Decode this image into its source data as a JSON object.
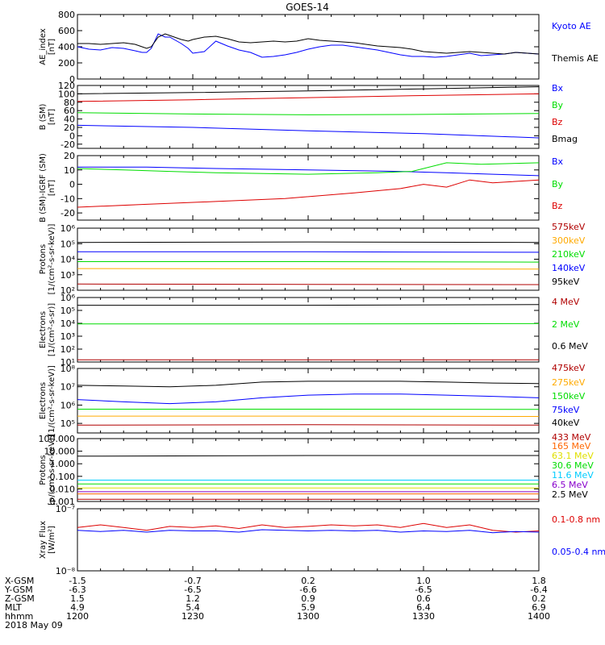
{
  "title": "GOES-14",
  "chart_data": [
    {
      "type": "line",
      "ylabel": "AE_index\n[nT]",
      "yscale": "linear",
      "ylim": [
        0,
        800
      ],
      "yticks": [
        0,
        200,
        400,
        600,
        800
      ],
      "ytick_labels": [
        "0",
        "200",
        "400",
        "600",
        "800"
      ],
      "xlim": [
        1200,
        1400
      ],
      "series": [
        {
          "name": "Kyoto AE",
          "color": "#0000ff",
          "x": [
            1200,
            1205,
            1210,
            1215,
            1220,
            1225,
            1228,
            1230,
            1232,
            1235,
            1238,
            1240,
            1245,
            1248,
            1250,
            1255,
            1260,
            1265,
            1270,
            1275,
            1280,
            1285,
            1290,
            1295,
            1300,
            1305,
            1310,
            1315,
            1320,
            1325,
            1330,
            1335,
            1340,
            1345,
            1350,
            1355,
            1360,
            1365,
            1370,
            1375,
            1380,
            1385,
            1390,
            1395,
            1400
          ],
          "values": [
            400,
            370,
            360,
            390,
            380,
            350,
            330,
            330,
            380,
            560,
            520,
            520,
            440,
            380,
            320,
            340,
            470,
            410,
            360,
            330,
            270,
            280,
            300,
            330,
            370,
            400,
            420,
            420,
            400,
            380,
            360,
            330,
            300,
            280,
            280,
            270,
            280,
            300,
            320,
            290,
            300,
            310,
            330,
            320,
            310
          ]
        },
        {
          "name": "Themis AE",
          "color": "#000000",
          "x": [
            1200,
            1205,
            1210,
            1215,
            1220,
            1225,
            1228,
            1230,
            1232,
            1235,
            1238,
            1240,
            1245,
            1248,
            1250,
            1255,
            1260,
            1265,
            1270,
            1275,
            1280,
            1285,
            1290,
            1295,
            1300,
            1305,
            1310,
            1315,
            1320,
            1325,
            1330,
            1335,
            1340,
            1345,
            1350,
            1355,
            1360,
            1365,
            1370,
            1375,
            1380,
            1385,
            1390,
            1395,
            1400
          ],
          "values": [
            440,
            440,
            430,
            440,
            450,
            430,
            400,
            380,
            400,
            520,
            560,
            540,
            490,
            470,
            490,
            520,
            530,
            500,
            460,
            450,
            460,
            470,
            460,
            470,
            500,
            480,
            470,
            460,
            450,
            430,
            410,
            400,
            390,
            370,
            340,
            330,
            320,
            330,
            340,
            330,
            320,
            310,
            330,
            320,
            310
          ]
        }
      ]
    },
    {
      "type": "line",
      "ylabel": "B (SM)\n[nT]",
      "yscale": "linear",
      "ylim": [
        -30,
        120
      ],
      "yticks": [
        -20,
        0,
        20,
        40,
        60,
        80,
        100,
        120
      ],
      "ytick_labels": [
        "-20",
        "0",
        "20",
        "40",
        "60",
        "80",
        "100",
        "120"
      ],
      "xlim": [
        1200,
        1400
      ],
      "series": [
        {
          "name": "Bx",
          "color": "#0000ff",
          "x": [
            1200,
            1250,
            1300,
            1350,
            1400
          ],
          "values": [
            25,
            20,
            12,
            5,
            -5
          ]
        },
        {
          "name": "By",
          "color": "#00dd00",
          "x": [
            1200,
            1250,
            1300,
            1350,
            1400
          ],
          "values": [
            55,
            52,
            50,
            51,
            53
          ]
        },
        {
          "name": "Bz",
          "color": "#dd0000",
          "x": [
            1200,
            1250,
            1300,
            1350,
            1400
          ],
          "values": [
            82,
            86,
            91,
            96,
            100
          ]
        },
        {
          "name": "Bmag",
          "color": "#000000",
          "x": [
            1200,
            1250,
            1300,
            1350,
            1400
          ],
          "values": [
            100,
            103,
            107,
            112,
            117
          ]
        }
      ]
    },
    {
      "type": "line",
      "ylabel": "B (SM)-IGRF (SM)\n[nT]",
      "yscale": "linear",
      "ylim": [
        -25,
        20
      ],
      "yticks": [
        -20,
        -10,
        0,
        10,
        20
      ],
      "ytick_labels": [
        "-20",
        "-10",
        "0",
        "10",
        "20"
      ],
      "xlim": [
        1200,
        1400
      ],
      "series": [
        {
          "name": "Bx",
          "color": "#0000ff",
          "x": [
            1200,
            1230,
            1260,
            1300,
            1340,
            1360,
            1380,
            1400
          ],
          "values": [
            12,
            12,
            11,
            10,
            9,
            8,
            7,
            6
          ]
        },
        {
          "name": "By",
          "color": "#00dd00",
          "x": [
            1200,
            1220,
            1240,
            1260,
            1300,
            1330,
            1345,
            1360,
            1375,
            1400
          ],
          "values": [
            11,
            10,
            9,
            8,
            7,
            8,
            9,
            15,
            14,
            15
          ]
        },
        {
          "name": "Bz",
          "color": "#dd0000",
          "x": [
            1200,
            1230,
            1260,
            1290,
            1320,
            1340,
            1350,
            1360,
            1370,
            1380,
            1400
          ],
          "values": [
            -16,
            -14,
            -12,
            -10,
            -6,
            -3,
            0,
            -2,
            3,
            1,
            3
          ]
        }
      ]
    },
    {
      "type": "line",
      "ylabel": "Protons\n[1/(cm²-s-sr-keV)]",
      "yscale": "log",
      "ylim": [
        100,
        1000000
      ],
      "yticks": [
        100,
        1000,
        10000,
        100000,
        1000000
      ],
      "ytick_labels": [
        "10²",
        "10³",
        "10⁴",
        "10⁵",
        "10⁶"
      ],
      "xlim": [
        1200,
        1400
      ],
      "series": [
        {
          "name": "575keV",
          "color": "#b00000",
          "x": [
            1200,
            1300,
            1400
          ],
          "values": [
            250,
            240,
            230
          ]
        },
        {
          "name": "300keV",
          "color": "#ffaa00",
          "x": [
            1200,
            1300,
            1400
          ],
          "values": [
            2500,
            2400,
            2300
          ]
        },
        {
          "name": "210keV",
          "color": "#00dd00",
          "x": [
            1200,
            1300,
            1400
          ],
          "values": [
            7000,
            7000,
            6500
          ]
        },
        {
          "name": "140keV",
          "color": "#0000ff",
          "x": [
            1200,
            1300,
            1400
          ],
          "values": [
            30000,
            30000,
            28000
          ]
        },
        {
          "name": "95keV",
          "color": "#000000",
          "x": [
            1200,
            1300,
            1400
          ],
          "values": [
            120000,
            130000,
            120000
          ]
        }
      ]
    },
    {
      "type": "line",
      "ylabel": "Electrons\n[1/(cm²-s-sr)]",
      "yscale": "log",
      "ylim": [
        10,
        1000000
      ],
      "yticks": [
        10,
        100,
        1000,
        10000,
        100000,
        1000000
      ],
      "ytick_labels": [
        "10¹",
        "10²",
        "10³",
        "10⁴",
        "10⁵",
        "10⁶"
      ],
      "xlim": [
        1200,
        1400
      ],
      "series": [
        {
          "name": "4 MeV",
          "color": "#b00000",
          "x": [
            1200,
            1300,
            1400
          ],
          "values": [
            15,
            15,
            15
          ]
        },
        {
          "name": "2 MeV",
          "color": "#00dd00",
          "x": [
            1200,
            1300,
            1400
          ],
          "values": [
            9000,
            9000,
            9500
          ]
        },
        {
          "name": "0.6 MeV",
          "color": "#000000",
          "x": [
            1200,
            1300,
            1400
          ],
          "values": [
            250000,
            250000,
            280000
          ]
        }
      ]
    },
    {
      "type": "line",
      "ylabel": "Electrons\n[1/(cm²-s-sr-keV)]",
      "yscale": "log",
      "ylim": [
        30000,
        100000000
      ],
      "yticks": [
        100000,
        1000000,
        10000000,
        100000000
      ],
      "ytick_labels": [
        "10⁵",
        "10⁶",
        "10⁷",
        "10⁸"
      ],
      "xlim": [
        1200,
        1400
      ],
      "series": [
        {
          "name": "475keV",
          "color": "#b00000",
          "x": [
            1200,
            1300,
            1400
          ],
          "values": [
            80000,
            85000,
            80000
          ]
        },
        {
          "name": "275keV",
          "color": "#ffaa00",
          "x": [
            1200,
            1300,
            1400
          ],
          "values": [
            250000,
            250000,
            240000
          ]
        },
        {
          "name": "150keV",
          "color": "#00dd00",
          "x": [
            1200,
            1300,
            1400
          ],
          "values": [
            600000,
            600000,
            580000
          ]
        },
        {
          "name": "75keV",
          "color": "#0000ff",
          "x": [
            1200,
            1220,
            1240,
            1260,
            1280,
            1300,
            1320,
            1340,
            1360,
            1380,
            1400
          ],
          "values": [
            2000000,
            1500000,
            1200000,
            1500000,
            2500000,
            3500000,
            4000000,
            4000000,
            3500000,
            3000000,
            2500000
          ]
        },
        {
          "name": "40keV",
          "color": "#000000",
          "x": [
            1200,
            1220,
            1240,
            1260,
            1280,
            1300,
            1320,
            1340,
            1360,
            1380,
            1400
          ],
          "values": [
            12000000,
            11000000,
            10000000,
            12000000,
            18000000,
            20000000,
            20000000,
            20000000,
            18000000,
            16000000,
            15000000
          ]
        }
      ]
    },
    {
      "type": "line",
      "ylabel": "Protons\n[p/(cm²-s-sr-keV)]",
      "yscale": "log",
      "ylim": [
        0.001,
        100
      ],
      "yticks": [
        0.001,
        0.01,
        0.1,
        1,
        10,
        100
      ],
      "ytick_labels": [
        "0.001",
        "0.010",
        "0.100",
        "1.000",
        "10.000",
        "100.000"
      ],
      "xlim": [
        1200,
        1400
      ],
      "series": [
        {
          "name": "433 MeV",
          "color": "#b00000",
          "x": [
            1200,
            1300,
            1400
          ],
          "values": [
            0.0015,
            0.0015,
            0.0015
          ]
        },
        {
          "name": "165 MeV",
          "color": "#ff6600",
          "x": [
            1200,
            1300,
            1400
          ],
          "values": [
            0.004,
            0.004,
            0.004
          ]
        },
        {
          "name": "63.1 MeV",
          "color": "#e0e000",
          "x": [
            1200,
            1300,
            1400
          ],
          "values": [
            0.012,
            0.012,
            0.012
          ]
        },
        {
          "name": "30.6 MeV",
          "color": "#00dd00",
          "x": [
            1200,
            1300,
            1400
          ],
          "values": [
            0.025,
            0.025,
            0.025
          ]
        },
        {
          "name": "11.6 MeV",
          "color": "#00ccff",
          "x": [
            1200,
            1300,
            1400
          ],
          "values": [
            0.05,
            0.05,
            0.05
          ]
        },
        {
          "name": "6.5 MeV",
          "color": "#8800cc",
          "x": [
            1200,
            1300,
            1400
          ],
          "values": [
            0.006,
            0.006,
            0.006
          ]
        },
        {
          "name": "2.5 MeV",
          "color": "#000000",
          "x": [
            1200,
            1300,
            1400
          ],
          "values": [
            4,
            4.5,
            4.5
          ]
        }
      ]
    },
    {
      "type": "line",
      "ylabel": "Xray Flux\n[W/m²]",
      "yscale": "log",
      "ylim": [
        1e-08,
        1e-07
      ],
      "yticks": [
        1e-08,
        1e-07
      ],
      "ytick_labels": [
        "10⁻⁸",
        "10⁻⁷"
      ],
      "xlim": [
        1200,
        1400
      ],
      "series": [
        {
          "name": "0.1-0.8 nm",
          "color": "#dd0000",
          "x": [
            1200,
            1210,
            1220,
            1230,
            1240,
            1250,
            1260,
            1270,
            1280,
            1290,
            1300,
            1310,
            1320,
            1330,
            1340,
            1350,
            1360,
            1370,
            1380,
            1390,
            1400
          ],
          "values": [
            5e-08,
            5.5e-08,
            5e-08,
            4.5e-08,
            5.2e-08,
            5e-08,
            5.3e-08,
            4.8e-08,
            5.5e-08,
            5e-08,
            5.2e-08,
            5.5e-08,
            5.3e-08,
            5.5e-08,
            5e-08,
            5.8e-08,
            5e-08,
            5.5e-08,
            4.5e-08,
            4.2e-08,
            4.4e-08
          ]
        },
        {
          "name": "0.05-0.4 nm",
          "color": "#0000ff",
          "x": [
            1200,
            1210,
            1220,
            1230,
            1240,
            1250,
            1260,
            1270,
            1280,
            1290,
            1300,
            1310,
            1320,
            1330,
            1340,
            1350,
            1360,
            1370,
            1380,
            1390,
            1400
          ],
          "values": [
            4.5e-08,
            4.3e-08,
            4.5e-08,
            4.2e-08,
            4.5e-08,
            4.4e-08,
            4.4e-08,
            4.2e-08,
            4.6e-08,
            4.5e-08,
            4.4e-08,
            4.5e-08,
            4.4e-08,
            4.5e-08,
            4.2e-08,
            4.4e-08,
            4.3e-08,
            4.5e-08,
            4.1e-08,
            4.3e-08,
            4.2e-08
          ]
        }
      ]
    }
  ],
  "xaxis": {
    "rows": [
      {
        "label": "X-GSM",
        "values": [
          "-1.5",
          "-0.7",
          "0.2",
          "1.0",
          "1.8"
        ]
      },
      {
        "label": "Y-GSM",
        "values": [
          "-6.3",
          "-6.5",
          "-6.6",
          "-6.5",
          "-6.4"
        ]
      },
      {
        "label": "Z-GSM",
        "values": [
          "1.5",
          "1.2",
          "0.9",
          "0.6",
          "0.2"
        ]
      },
      {
        "label": "MLT",
        "values": [
          "4.9",
          "5.4",
          "5.9",
          "6.4",
          "6.9"
        ]
      },
      {
        "label": "hhmm",
        "values": [
          "1200",
          "1230",
          "1300",
          "1330",
          "1400"
        ]
      }
    ],
    "date": "2018 May 09"
  }
}
